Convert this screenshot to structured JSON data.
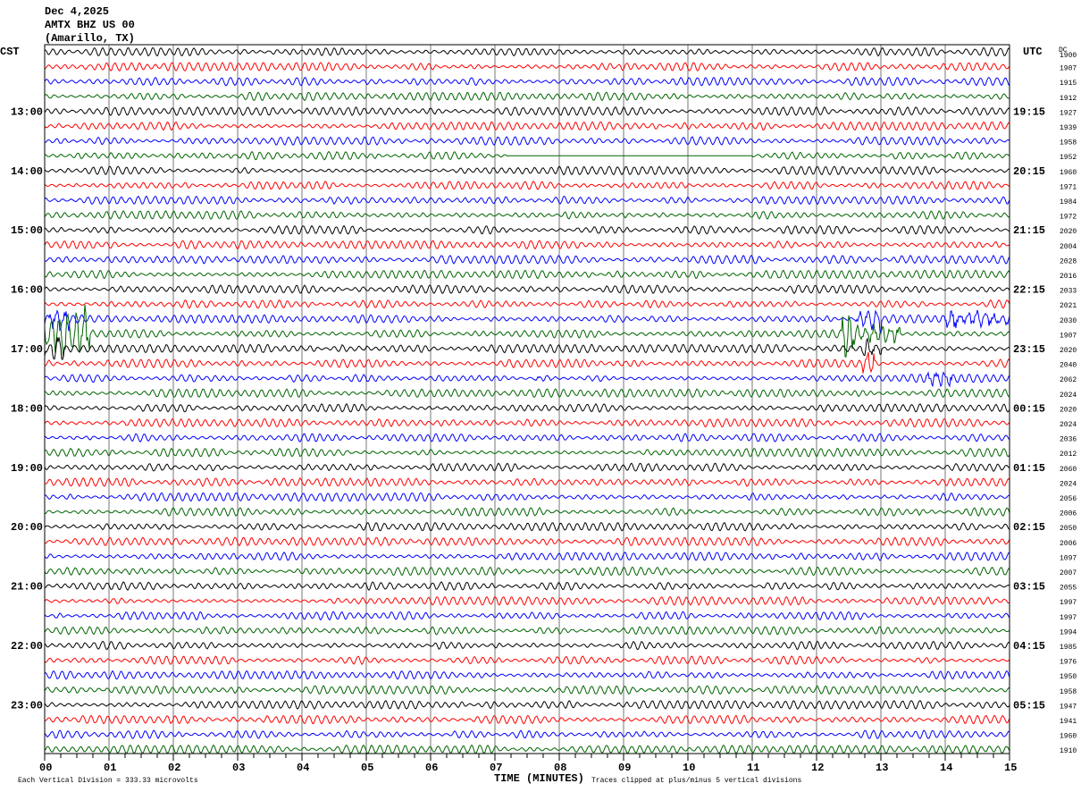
{
  "header": {
    "date": "Dec 4,2025",
    "station": "AMTX BHZ US 00",
    "location": "(Amarillo, TX)"
  },
  "chart_data": {
    "type": "line",
    "title": "Dec 4,2025 AMTX BHZ US 00 (Amarillo, TX)",
    "left_axis_label": "CST",
    "right_axis_label": "UTC",
    "dc_header": "DC",
    "xlabel": "TIME (MINUTES)",
    "xlim": [
      0,
      15
    ],
    "x_ticks": [
      "00",
      "01",
      "02",
      "03",
      "04",
      "05",
      "06",
      "07",
      "08",
      "09",
      "10",
      "11",
      "12",
      "13",
      "14",
      "15"
    ],
    "left_time_labels": [
      "13:00",
      "14:00",
      "15:00",
      "16:00",
      "17:00",
      "18:00",
      "19:00",
      "20:00",
      "21:00",
      "22:00",
      "23:00"
    ],
    "right_time_labels": [
      "19:15",
      "20:15",
      "21:15",
      "22:15",
      "23:15",
      "00:15",
      "01:15",
      "02:15",
      "03:15",
      "04:15",
      "05:15"
    ],
    "rows_per_hour": 4,
    "minutes_per_row": 15,
    "first_row_time_cst": "12:00",
    "trace_colors": [
      "#000000",
      "#ff0000",
      "#0000ff",
      "#006400"
    ],
    "dc_offsets": [
      "1900",
      "1907",
      "1915",
      "1912",
      "1927",
      "1939",
      "1958",
      "1952",
      "1960",
      "1971",
      "1984",
      "1972",
      "2020",
      "2004",
      "2028",
      "2016",
      "2033",
      "2021",
      "2030",
      "1907",
      "2020",
      "2040",
      "2062",
      "2024",
      "2020",
      "2024",
      "2036",
      "2012",
      "2060",
      "2024",
      "2056",
      "2006",
      "2050",
      "2006",
      "1097",
      "2007",
      "2055",
      "1997",
      "1997",
      "1994",
      "1985",
      "1976",
      "1950",
      "1958",
      "1947",
      "1941",
      "1960",
      "1910"
    ],
    "events": [
      {
        "row": 19,
        "start_min": 0.0,
        "end_min": 0.7,
        "amp": 5
      },
      {
        "row": 18,
        "start_min": 0.0,
        "end_min": 0.4,
        "amp": 3
      },
      {
        "row": 20,
        "start_min": 0.0,
        "end_min": 0.3,
        "amp": 3
      },
      {
        "row": 19,
        "start_min": 12.4,
        "end_min": 13.3,
        "amp": 5
      },
      {
        "row": 18,
        "start_min": 12.6,
        "end_min": 13.0,
        "amp": 3
      },
      {
        "row": 20,
        "start_min": 12.7,
        "end_min": 13.0,
        "amp": 3
      },
      {
        "row": 21,
        "start_min": 12.7,
        "end_min": 12.9,
        "amp": 3
      },
      {
        "row": 18,
        "start_min": 14.0,
        "end_min": 15.0,
        "amp": 2
      },
      {
        "row": 22,
        "start_min": 7.6,
        "end_min": 7.9,
        "amp": 1.5
      },
      {
        "row": 22,
        "start_min": 13.7,
        "end_min": 14.1,
        "amp": 1.5
      }
    ],
    "gaps": [
      {
        "row": 7,
        "start_min": 7.2,
        "end_min": 11.0
      }
    ],
    "footer_left": "Each Vertical Division =  333.33 microvolts",
    "footer_right": "Traces clipped at plus/minus 5 vertical divisions"
  }
}
